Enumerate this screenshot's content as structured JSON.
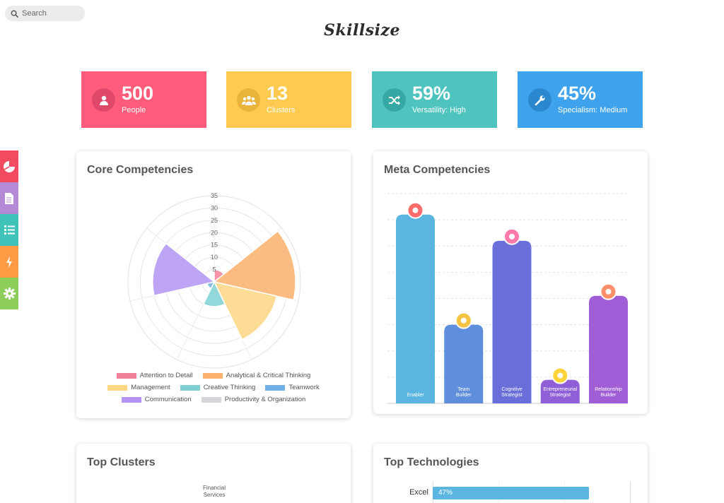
{
  "search": {
    "placeholder": "Search"
  },
  "logo": "Skillsize",
  "stats": [
    {
      "value": "500",
      "label": "People",
      "color": "#ff5c7c",
      "icon": "person-icon"
    },
    {
      "value": "13",
      "label": "Clusters",
      "color": "#ffca4f",
      "icon": "group-icon"
    },
    {
      "value": "59%",
      "label": "Versatility: High",
      "color": "#4fc3be",
      "icon": "shuffle-icon"
    },
    {
      "value": "45%",
      "label": "Specialism: Medium",
      "color": "#3ea3ec",
      "icon": "wrench-icon"
    }
  ],
  "sidebar": [
    {
      "name": "dashboard-icon",
      "color": "#f24b60"
    },
    {
      "name": "document-icon",
      "color": "#b48ad6"
    },
    {
      "name": "list-icon",
      "color": "#3fc3b8"
    },
    {
      "name": "lightning-icon",
      "color": "#ff9b45"
    },
    {
      "name": "settings-icon",
      "color": "#8dce5a"
    }
  ],
  "cards": {
    "core": "Core Competencies",
    "meta": "Meta Competencies",
    "clusters": "Top Clusters",
    "tech": "Top Technologies"
  },
  "chart_data": [
    {
      "type": "polar-area",
      "title": "Core Competencies",
      "categories": [
        "Attention to Detail",
        "Analytical & Critical Thinking",
        "Management",
        "Creative Thinking",
        "Teamwork",
        "Communication",
        "Productivity & Organization"
      ],
      "values": [
        5,
        33,
        26,
        10,
        3,
        25,
        0
      ],
      "colors": [
        "#f1819a",
        "#fbb06b",
        "#fdd783",
        "#7fd0d2",
        "#6fb0e6",
        "#b394f2",
        "#d4d6db"
      ],
      "ticks": [
        5,
        10,
        15,
        20,
        25,
        30,
        35
      ],
      "rmax": 35,
      "legend": "bottom"
    },
    {
      "type": "bar",
      "title": "Meta Competencies",
      "categories": [
        "Enabler",
        "Team Builder",
        "Cognitive Strategist",
        "Entrepreneurial Strategist",
        "Relationship Builder"
      ],
      "values": [
        72,
        30,
        62,
        9,
        41
      ],
      "colors": [
        "#5ab5e0",
        "#5f8fdc",
        "#6a6ed8",
        "#8f5fd8",
        "#a05ed6"
      ],
      "ylim": [
        0,
        80
      ],
      "grid": true
    }
  ],
  "clusters": {
    "first_label": "Financial Services"
  },
  "technologies": [
    {
      "name": "Excel",
      "percent": "47%",
      "value": 47
    }
  ]
}
